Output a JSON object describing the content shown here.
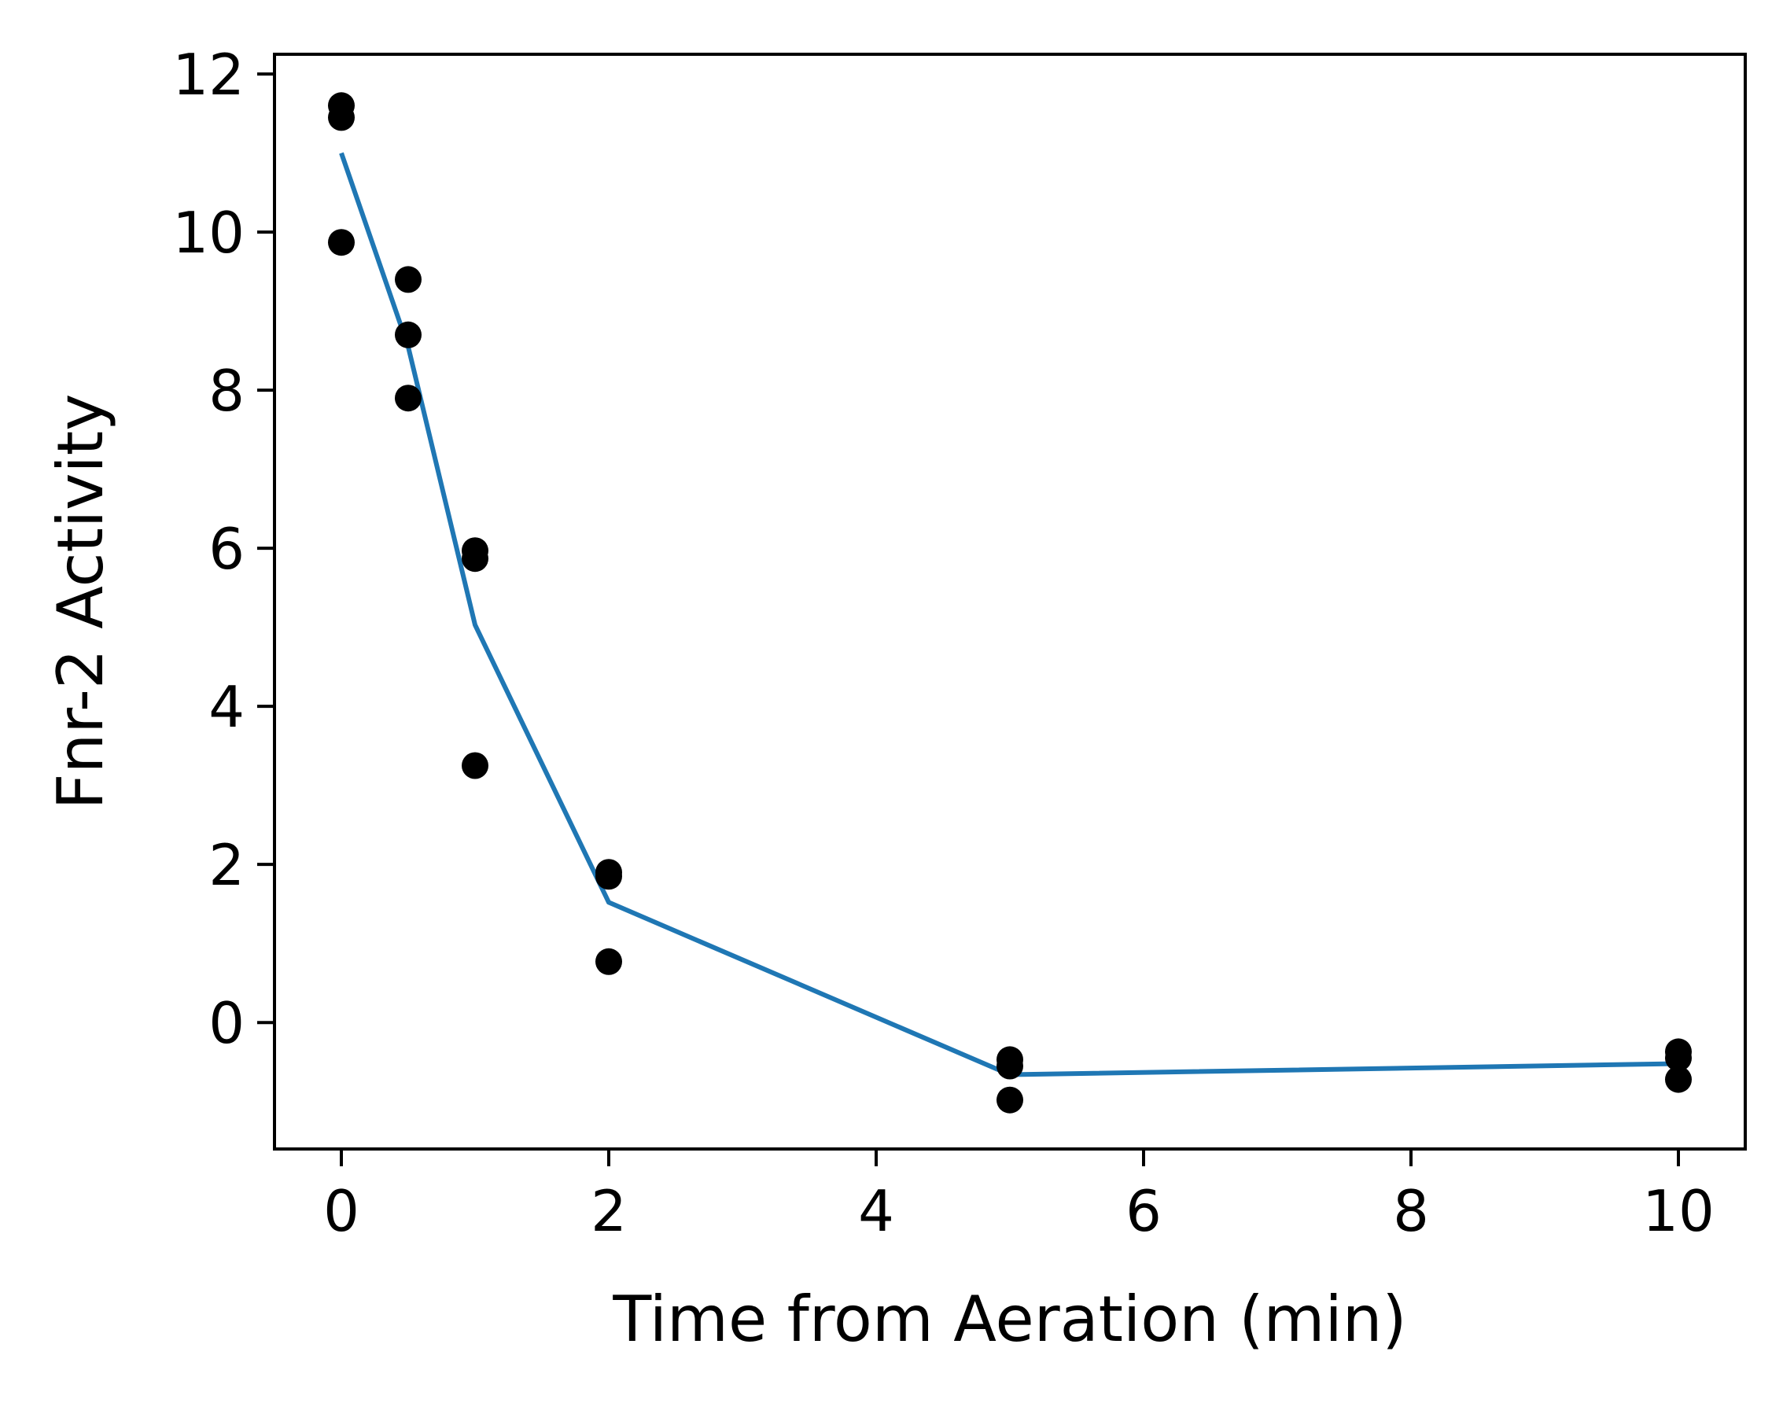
{
  "chart_data": {
    "type": "scatter",
    "xlabel": "Time from Aeration (min)",
    "ylabel": "Fnr-2 Activity",
    "xlim": [
      -0.5,
      10.5
    ],
    "ylim": [
      -1.6,
      12.25
    ],
    "x_ticks": [
      0,
      2,
      4,
      6,
      8,
      10
    ],
    "y_ticks": [
      0,
      2,
      4,
      6,
      8,
      10,
      12
    ],
    "grid": false,
    "legend": "none",
    "series": [
      {
        "kind": "points",
        "color": "#000000",
        "points": [
          {
            "x": 0,
            "y": 11.6
          },
          {
            "x": 0,
            "y": 11.45
          },
          {
            "x": 0,
            "y": 9.87
          },
          {
            "x": 0.5,
            "y": 9.4
          },
          {
            "x": 0.5,
            "y": 8.7
          },
          {
            "x": 0.5,
            "y": 7.9
          },
          {
            "x": 1,
            "y": 5.97
          },
          {
            "x": 1,
            "y": 5.87
          },
          {
            "x": 1,
            "y": 3.25
          },
          {
            "x": 2,
            "y": 1.9
          },
          {
            "x": 2,
            "y": 1.85
          },
          {
            "x": 2,
            "y": 0.77
          },
          {
            "x": 5,
            "y": -0.47
          },
          {
            "x": 5,
            "y": -0.55
          },
          {
            "x": 5,
            "y": -0.98
          },
          {
            "x": 10,
            "y": -0.37
          },
          {
            "x": 10,
            "y": -0.45
          },
          {
            "x": 10,
            "y": -0.72
          }
        ]
      },
      {
        "kind": "line",
        "color": "#1f77b4",
        "points": [
          {
            "x": 0,
            "y": 11.0
          },
          {
            "x": 0.5,
            "y": 8.55
          },
          {
            "x": 1,
            "y": 5.03
          },
          {
            "x": 2,
            "y": 1.52
          },
          {
            "x": 5,
            "y": -0.66
          },
          {
            "x": 10,
            "y": -0.52
          }
        ]
      }
    ]
  }
}
